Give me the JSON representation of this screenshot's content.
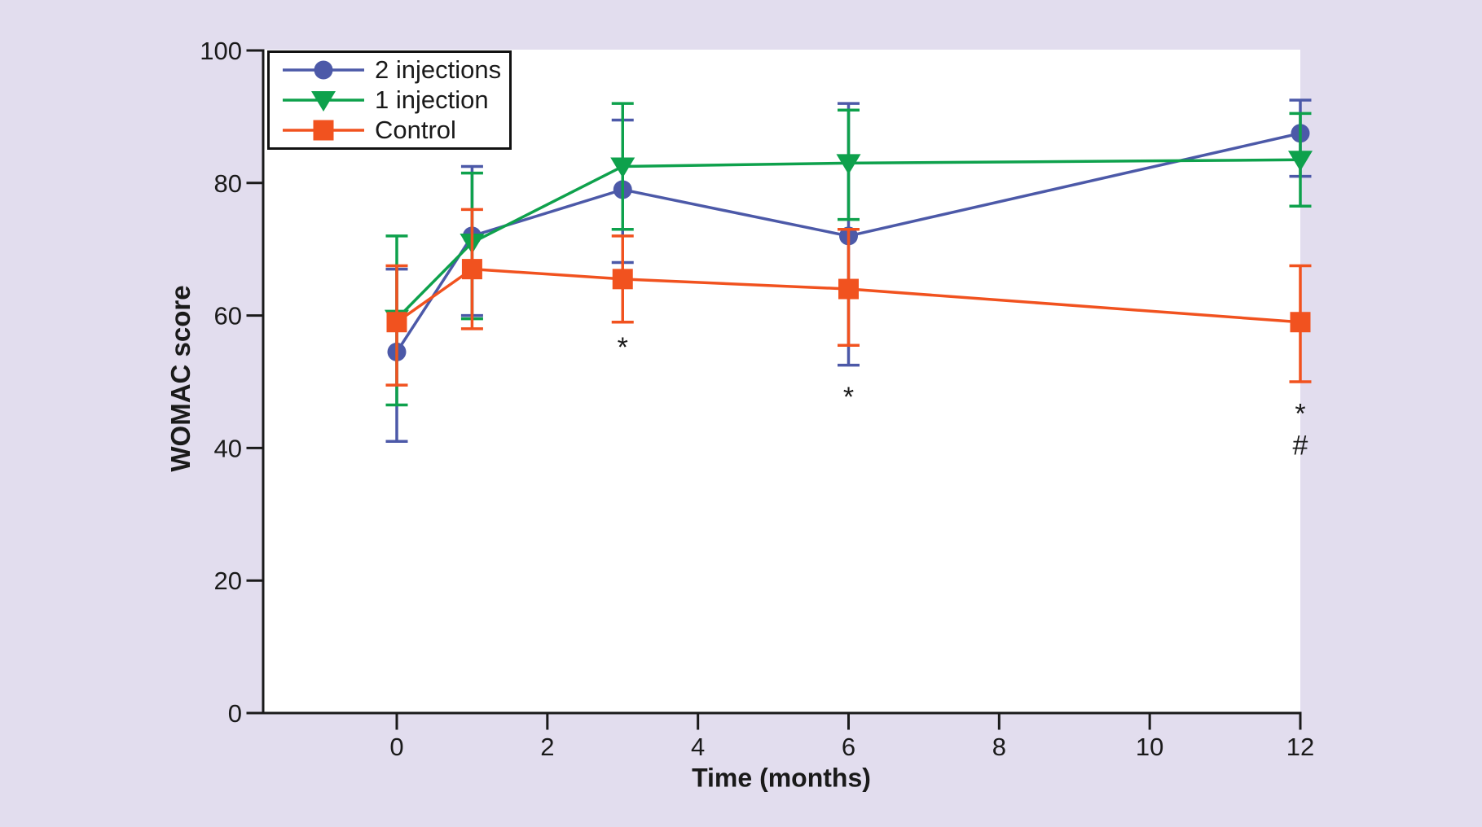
{
  "figure": {
    "background_color": "#e2ddee",
    "plot_background": "#ffffff",
    "axis_color": "#1a1a1a",
    "legend_border_color": "#111111"
  },
  "chart_data": {
    "type": "line",
    "title": "",
    "xlabel": "Time (months)",
    "ylabel": "WOMAC score",
    "xlim": [
      0,
      12
    ],
    "ylim": [
      0,
      100
    ],
    "x_ticks": [
      0,
      2,
      4,
      6,
      8,
      10,
      12
    ],
    "y_ticks": [
      0,
      20,
      40,
      60,
      80,
      100
    ],
    "grid": false,
    "legend_position": "top-left",
    "x": [
      0,
      1,
      3,
      6,
      12
    ],
    "series": [
      {
        "name": "2 injections",
        "color": "#4c59a8",
        "marker": "circle",
        "values": [
          54.5,
          72,
          79,
          72,
          87.5
        ],
        "err_upper": [
          67,
          82.5,
          89.5,
          92,
          92.5
        ],
        "err_lower": [
          41,
          60,
          68,
          52.5,
          81
        ]
      },
      {
        "name": "1 injection",
        "color": "#0ea14c",
        "marker": "triangle-down",
        "values": [
          59.5,
          71,
          82.5,
          83,
          83.5
        ],
        "err_upper": [
          72,
          81.5,
          92,
          91,
          90.5
        ],
        "err_lower": [
          46.5,
          59.5,
          73,
          74.5,
          76.5
        ]
      },
      {
        "name": "Control",
        "color": "#f1521f",
        "marker": "square",
        "values": [
          59,
          67,
          65.5,
          64,
          59
        ],
        "err_upper": [
          67.5,
          76,
          72,
          73,
          67.5
        ],
        "err_lower": [
          49.5,
          58,
          59,
          55.5,
          50
        ]
      }
    ],
    "annotations": [
      {
        "text": "*",
        "x": 3,
        "y": 56
      },
      {
        "text": "*",
        "x": 6,
        "y": 48.5
      },
      {
        "text": "*",
        "x": 12,
        "y": 46
      },
      {
        "text": "#",
        "x": 12,
        "y": 40.5
      }
    ]
  }
}
